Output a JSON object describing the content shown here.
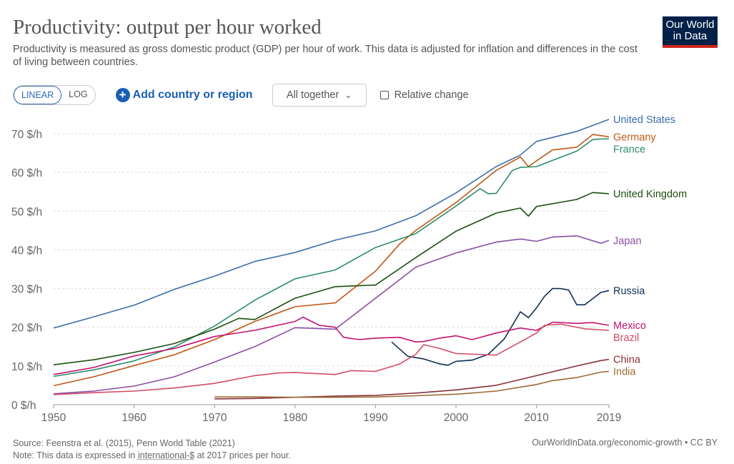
{
  "header": {
    "title": "Productivity: output per hour worked",
    "subtitle": "Productivity is measured as gross domestic product (GDP) per hour of work. This data is adjusted for inflation and differences in the cost of living between countries.",
    "logo_line1": "Our World",
    "logo_line2": "in Data"
  },
  "controls": {
    "linear_label": "LINEAR",
    "log_label": "LOG",
    "add_label": "Add country or region",
    "dropdown_label": "All together",
    "relative_label": "Relative change"
  },
  "footer": {
    "source": "Source: Feenstra et al. (2015), Penn World Table (2021)",
    "note_prefix": "Note: This data is expressed in ",
    "note_link": "international-$",
    "note_suffix": " at 2017 prices per hour.",
    "right": "OurWorldInData.org/economic-growth • CC BY"
  },
  "colors": {
    "accent": "#2f68b5",
    "logo_bg": "#002147",
    "logo_bar": "#ce261e"
  },
  "chart_data": {
    "type": "line",
    "xlim": [
      1950,
      2019
    ],
    "ylim": [
      0,
      70
    ],
    "ylabel": "",
    "xlabel": "",
    "x_ticks": [
      1950,
      1960,
      1970,
      1980,
      1990,
      2000,
      2010,
      2019
    ],
    "y_ticks": [
      0,
      10,
      20,
      30,
      40,
      50,
      60,
      70
    ],
    "y_tick_labels": [
      "0 $/h",
      "10 $/h",
      "20 $/h",
      "30 $/h",
      "40 $/h",
      "50 $/h",
      "60 $/h",
      "70 $/h"
    ],
    "grid": "horizontal",
    "legend": "right",
    "series": [
      {
        "name": "United States",
        "color": "#3c6fa9",
        "points": [
          [
            1950,
            19.8
          ],
          [
            1955,
            22.7
          ],
          [
            1960,
            25.7
          ],
          [
            1965,
            29.8
          ],
          [
            1970,
            33.2
          ],
          [
            1975,
            37.0
          ],
          [
            1980,
            39.3
          ],
          [
            1985,
            42.5
          ],
          [
            1990,
            44.9
          ],
          [
            1995,
            48.8
          ],
          [
            2000,
            54.7
          ],
          [
            2005,
            61.5
          ],
          [
            2008,
            64.5
          ],
          [
            2010,
            68.0
          ],
          [
            2015,
            70.6
          ],
          [
            2019,
            73.7
          ]
        ]
      },
      {
        "name": "Germany",
        "color": "#c05917",
        "points": [
          [
            1950,
            4.9
          ],
          [
            1955,
            7.2
          ],
          [
            1960,
            10.1
          ],
          [
            1965,
            12.9
          ],
          [
            1970,
            16.8
          ],
          [
            1975,
            21.5
          ],
          [
            1980,
            25.3
          ],
          [
            1985,
            26.3
          ],
          [
            1990,
            34.5
          ],
          [
            1993,
            41.5
          ],
          [
            1995,
            45.0
          ],
          [
            2000,
            52.2
          ],
          [
            2005,
            60.5
          ],
          [
            2008,
            64.0
          ],
          [
            2009,
            61.5
          ],
          [
            2010,
            63.0
          ],
          [
            2012,
            65.8
          ],
          [
            2015,
            66.5
          ],
          [
            2017,
            69.8
          ],
          [
            2019,
            69.2
          ]
        ]
      },
      {
        "name": "France",
        "color": "#2d8c6a",
        "points": [
          [
            1950,
            7.3
          ],
          [
            1955,
            9.0
          ],
          [
            1960,
            11.3
          ],
          [
            1965,
            14.9
          ],
          [
            1970,
            20.3
          ],
          [
            1975,
            27.0
          ],
          [
            1980,
            32.5
          ],
          [
            1985,
            34.8
          ],
          [
            1990,
            40.6
          ],
          [
            1995,
            44.2
          ],
          [
            2000,
            51.3
          ],
          [
            2003,
            55.8
          ],
          [
            2004,
            54.5
          ],
          [
            2005,
            54.6
          ],
          [
            2007,
            60.5
          ],
          [
            2008,
            61.3
          ],
          [
            2010,
            61.5
          ],
          [
            2015,
            65.5
          ],
          [
            2017,
            68.5
          ],
          [
            2019,
            68.7
          ]
        ]
      },
      {
        "name": "United Kingdom",
        "color": "#1d4d12",
        "points": [
          [
            1950,
            10.3
          ],
          [
            1955,
            11.6
          ],
          [
            1960,
            13.5
          ],
          [
            1965,
            15.8
          ],
          [
            1970,
            19.5
          ],
          [
            1973,
            22.3
          ],
          [
            1975,
            22.0
          ],
          [
            1980,
            27.5
          ],
          [
            1985,
            30.5
          ],
          [
            1990,
            30.9
          ],
          [
            1995,
            38.0
          ],
          [
            2000,
            44.8
          ],
          [
            2005,
            49.5
          ],
          [
            2008,
            50.8
          ],
          [
            2009,
            48.7
          ],
          [
            2010,
            51.2
          ],
          [
            2015,
            53.0
          ],
          [
            2017,
            54.8
          ],
          [
            2019,
            54.5
          ]
        ]
      },
      {
        "name": "Japan",
        "color": "#8a4fa6",
        "points": [
          [
            1950,
            2.8
          ],
          [
            1955,
            3.5
          ],
          [
            1960,
            4.8
          ],
          [
            1965,
            7.2
          ],
          [
            1970,
            11.0
          ],
          [
            1975,
            15.0
          ],
          [
            1980,
            19.9
          ],
          [
            1985,
            19.5
          ],
          [
            1990,
            27.5
          ],
          [
            1995,
            35.5
          ],
          [
            2000,
            39.2
          ],
          [
            2005,
            42.0
          ],
          [
            2008,
            42.8
          ],
          [
            2010,
            42.2
          ],
          [
            2012,
            43.3
          ],
          [
            2015,
            43.6
          ],
          [
            2018,
            41.7
          ],
          [
            2019,
            42.4
          ]
        ]
      },
      {
        "name": "Russia",
        "color": "#0f2d52",
        "points": [
          [
            1992,
            16.2
          ],
          [
            1994,
            12.5
          ],
          [
            1996,
            11.8
          ],
          [
            1998,
            10.5
          ],
          [
            1999,
            10.2
          ],
          [
            2000,
            11.2
          ],
          [
            2002,
            11.5
          ],
          [
            2004,
            13.0
          ],
          [
            2006,
            17.0
          ],
          [
            2008,
            24.0
          ],
          [
            2009,
            22.5
          ],
          [
            2010,
            25.0
          ],
          [
            2011,
            28.0
          ],
          [
            2012,
            30.0
          ],
          [
            2013,
            30.0
          ],
          [
            2014,
            29.6
          ],
          [
            2015,
            25.8
          ],
          [
            2016,
            25.8
          ],
          [
            2018,
            29.0
          ],
          [
            2019,
            29.5
          ]
        ]
      },
      {
        "name": "Mexico",
        "color": "#c4126f",
        "points": [
          [
            1950,
            7.8
          ],
          [
            1955,
            9.6
          ],
          [
            1960,
            12.6
          ],
          [
            1965,
            14.5
          ],
          [
            1970,
            17.6
          ],
          [
            1975,
            19.2
          ],
          [
            1980,
            21.5
          ],
          [
            1981,
            22.6
          ],
          [
            1983,
            20.5
          ],
          [
            1985,
            20.0
          ],
          [
            1986,
            17.4
          ],
          [
            1988,
            16.8
          ],
          [
            1990,
            17.2
          ],
          [
            1993,
            17.4
          ],
          [
            1995,
            16.2
          ],
          [
            1996,
            16.3
          ],
          [
            1998,
            17.2
          ],
          [
            2000,
            17.8
          ],
          [
            2002,
            16.8
          ],
          [
            2005,
            18.5
          ],
          [
            2008,
            19.8
          ],
          [
            2010,
            19.2
          ],
          [
            2012,
            21.3
          ],
          [
            2015,
            21.0
          ],
          [
            2017,
            21.2
          ],
          [
            2019,
            20.5
          ]
        ]
      },
      {
        "name": "Brazil",
        "color": "#d14c66",
        "points": [
          [
            1950,
            2.6
          ],
          [
            1955,
            3.1
          ],
          [
            1960,
            3.5
          ],
          [
            1965,
            4.3
          ],
          [
            1970,
            5.5
          ],
          [
            1975,
            7.5
          ],
          [
            1978,
            8.2
          ],
          [
            1980,
            8.3
          ],
          [
            1985,
            7.8
          ],
          [
            1987,
            8.8
          ],
          [
            1990,
            8.6
          ],
          [
            1993,
            10.5
          ],
          [
            1995,
            13.0
          ],
          [
            1996,
            15.5
          ],
          [
            1998,
            14.5
          ],
          [
            2000,
            13.2
          ],
          [
            2005,
            12.8
          ],
          [
            2008,
            16.2
          ],
          [
            2010,
            18.5
          ],
          [
            2011,
            20.5
          ],
          [
            2013,
            20.8
          ],
          [
            2016,
            19.6
          ],
          [
            2019,
            19.2
          ]
        ]
      },
      {
        "name": "China",
        "color": "#883039",
        "points": [
          [
            1970,
            1.5
          ],
          [
            1975,
            1.6
          ],
          [
            1980,
            1.9
          ],
          [
            1985,
            2.2
          ],
          [
            1990,
            2.4
          ],
          [
            1995,
            3.0
          ],
          [
            2000,
            3.8
          ],
          [
            2005,
            5.0
          ],
          [
            2010,
            7.5
          ],
          [
            2015,
            10.0
          ],
          [
            2018,
            11.4
          ],
          [
            2019,
            11.7
          ]
        ]
      },
      {
        "name": "India",
        "color": "#9a6b35",
        "points": [
          [
            1970,
            2.0
          ],
          [
            1975,
            2.0
          ],
          [
            1980,
            1.9
          ],
          [
            1985,
            1.9
          ],
          [
            1990,
            2.0
          ],
          [
            1995,
            2.3
          ],
          [
            2000,
            2.7
          ],
          [
            2005,
            3.5
          ],
          [
            2010,
            5.2
          ],
          [
            2012,
            6.2
          ],
          [
            2015,
            7.0
          ],
          [
            2018,
            8.4
          ],
          [
            2019,
            8.6
          ]
        ]
      }
    ]
  }
}
